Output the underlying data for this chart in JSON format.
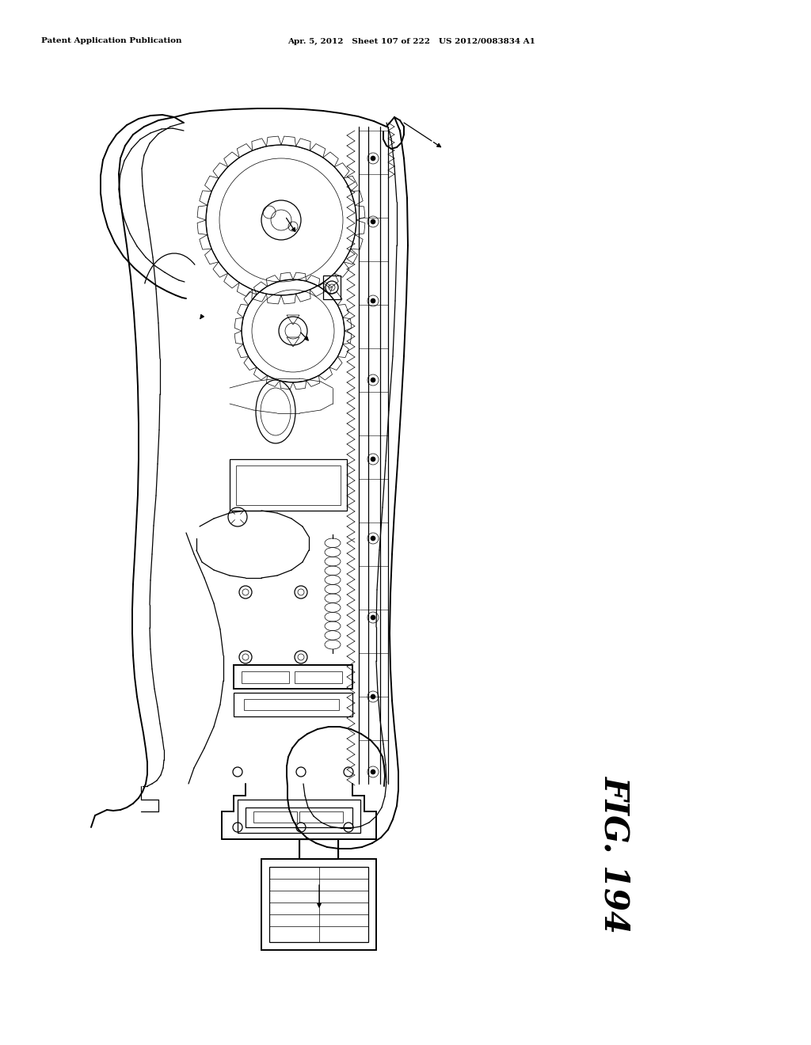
{
  "title_left": "Patent Application Publication",
  "title_center": "Apr. 5, 2012   Sheet 107 of 222   US 2012/0083834 A1",
  "fig_label": "FIG. 194",
  "background_color": "#ffffff",
  "line_color": "#000000",
  "fig_width": 10.24,
  "fig_height": 13.2,
  "dpi": 100
}
